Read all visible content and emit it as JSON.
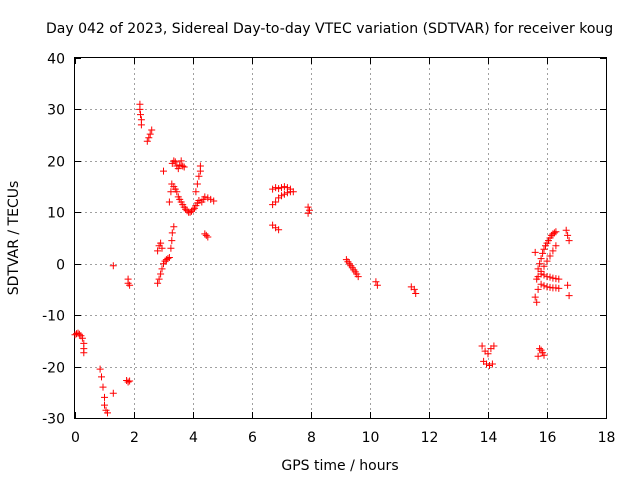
{
  "chart_data": {
    "type": "scatter",
    "title": "Day 042 of 2023, Sidereal Day-to-day VTEC variation (SDTVAR) for receiver koug",
    "xlabel": "GPS time / hours",
    "ylabel": "SDTVAR / TECUs",
    "xlim": [
      0,
      18
    ],
    "ylim": [
      -30,
      40
    ],
    "xticks": [
      0,
      2,
      4,
      6,
      8,
      10,
      12,
      14,
      16,
      18
    ],
    "yticks": [
      -30,
      -20,
      -10,
      0,
      10,
      20,
      30,
      40
    ],
    "grid": true,
    "marker": "+",
    "color": "#ff0000",
    "series": [
      {
        "name": "SDTVAR",
        "points": [
          [
            0.0,
            -13.8
          ],
          [
            0.05,
            -13.6
          ],
          [
            0.1,
            -13.5
          ],
          [
            0.15,
            -13.7
          ],
          [
            0.2,
            -14.0
          ],
          [
            0.25,
            -14.5
          ],
          [
            0.3,
            -15.5
          ],
          [
            0.3,
            -16.5
          ],
          [
            0.3,
            -17.3
          ],
          [
            0.85,
            -20.5
          ],
          [
            0.9,
            -22.0
          ],
          [
            0.95,
            -24.0
          ],
          [
            1.0,
            -26.0
          ],
          [
            1.0,
            -27.5
          ],
          [
            1.05,
            -28.5
          ],
          [
            1.1,
            -29.0
          ],
          [
            1.3,
            -0.4
          ],
          [
            1.3,
            -25.2
          ],
          [
            1.8,
            -3.0
          ],
          [
            1.8,
            -3.8
          ],
          [
            1.85,
            -4.2
          ],
          [
            1.75,
            -22.7
          ],
          [
            1.8,
            -23.0
          ],
          [
            1.85,
            -22.8
          ],
          [
            2.2,
            31.0
          ],
          [
            2.2,
            30.0
          ],
          [
            2.22,
            29.0
          ],
          [
            2.25,
            28.0
          ],
          [
            2.25,
            27.0
          ],
          [
            2.45,
            23.8
          ],
          [
            2.5,
            24.5
          ],
          [
            2.55,
            25.2
          ],
          [
            2.6,
            26.0
          ],
          [
            2.8,
            -3.8
          ],
          [
            2.85,
            -3.0
          ],
          [
            2.9,
            -2.0
          ],
          [
            2.95,
            -1.0
          ],
          [
            3.0,
            0.0
          ],
          [
            3.05,
            0.5
          ],
          [
            3.1,
            0.8
          ],
          [
            3.15,
            1.0
          ],
          [
            3.2,
            1.2
          ],
          [
            2.8,
            2.5
          ],
          [
            2.85,
            3.5
          ],
          [
            2.9,
            4.0
          ],
          [
            2.95,
            3.0
          ],
          [
            3.25,
            3.0
          ],
          [
            3.28,
            4.5
          ],
          [
            3.3,
            6.0
          ],
          [
            3.35,
            7.2
          ],
          [
            3.0,
            18.0
          ],
          [
            3.2,
            12.0
          ],
          [
            3.25,
            14.0
          ],
          [
            3.28,
            15.5
          ],
          [
            3.3,
            19.5
          ],
          [
            3.35,
            20.0
          ],
          [
            3.4,
            19.8
          ],
          [
            3.45,
            19.0
          ],
          [
            3.5,
            18.5
          ],
          [
            3.55,
            19.2
          ],
          [
            3.6,
            20.0
          ],
          [
            3.65,
            19.0
          ],
          [
            3.7,
            18.8
          ],
          [
            3.35,
            15.0
          ],
          [
            3.4,
            14.5
          ],
          [
            3.45,
            14.0
          ],
          [
            3.5,
            13.0
          ],
          [
            3.55,
            12.5
          ],
          [
            3.6,
            12.0
          ],
          [
            3.65,
            11.5
          ],
          [
            3.7,
            11.0
          ],
          [
            3.75,
            10.6
          ],
          [
            3.8,
            10.3
          ],
          [
            3.85,
            10.0
          ],
          [
            3.9,
            10.0
          ],
          [
            3.95,
            10.2
          ],
          [
            4.0,
            10.5
          ],
          [
            4.05,
            10.8
          ],
          [
            4.1,
            11.3
          ],
          [
            4.15,
            11.8
          ],
          [
            4.2,
            12.3
          ],
          [
            4.1,
            14.0
          ],
          [
            4.15,
            15.5
          ],
          [
            4.2,
            17.0
          ],
          [
            4.25,
            18.0
          ],
          [
            4.25,
            19.0
          ],
          [
            4.3,
            12.0
          ],
          [
            4.35,
            12.5
          ],
          [
            4.4,
            13.0
          ],
          [
            4.5,
            12.8
          ],
          [
            4.6,
            12.5
          ],
          [
            4.7,
            12.2
          ],
          [
            4.4,
            5.8
          ],
          [
            4.45,
            5.5
          ],
          [
            4.5,
            5.2
          ],
          [
            6.7,
            14.5
          ],
          [
            6.8,
            14.8
          ],
          [
            6.9,
            14.6
          ],
          [
            7.0,
            14.8
          ],
          [
            7.1,
            15.0
          ],
          [
            7.2,
            14.8
          ],
          [
            7.3,
            14.5
          ],
          [
            7.4,
            14.0
          ],
          [
            6.7,
            11.5
          ],
          [
            6.8,
            12.0
          ],
          [
            6.9,
            12.8
          ],
          [
            7.0,
            13.2
          ],
          [
            7.1,
            13.5
          ],
          [
            7.2,
            13.8
          ],
          [
            7.3,
            14.0
          ],
          [
            6.7,
            7.5
          ],
          [
            6.8,
            7.0
          ],
          [
            6.9,
            6.6
          ],
          [
            7.9,
            11.0
          ],
          [
            7.95,
            10.4
          ],
          [
            7.9,
            9.8
          ],
          [
            9.2,
            0.8
          ],
          [
            9.25,
            0.4
          ],
          [
            9.3,
            0.0
          ],
          [
            9.35,
            -0.4
          ],
          [
            9.4,
            -0.8
          ],
          [
            9.45,
            -1.2
          ],
          [
            9.5,
            -1.6
          ],
          [
            9.55,
            -2.0
          ],
          [
            9.6,
            -2.5
          ],
          [
            10.2,
            -3.5
          ],
          [
            10.25,
            -4.2
          ],
          [
            11.4,
            -4.5
          ],
          [
            11.5,
            -5.0
          ],
          [
            11.55,
            -5.8
          ],
          [
            13.8,
            -16.0
          ],
          [
            13.9,
            -17.0
          ],
          [
            14.0,
            -17.5
          ],
          [
            14.1,
            -16.5
          ],
          [
            14.2,
            -16.0
          ],
          [
            13.85,
            -19.0
          ],
          [
            13.95,
            -19.5
          ],
          [
            14.05,
            -19.8
          ],
          [
            14.15,
            -19.5
          ],
          [
            15.6,
            2.2
          ],
          [
            15.65,
            -3.0
          ],
          [
            15.7,
            -5.0
          ],
          [
            15.65,
            -7.5
          ],
          [
            15.6,
            -6.5
          ],
          [
            15.7,
            -1.0
          ],
          [
            15.75,
            0.0
          ],
          [
            15.8,
            1.0
          ],
          [
            15.85,
            2.0
          ],
          [
            15.9,
            2.8
          ],
          [
            15.95,
            3.5
          ],
          [
            16.0,
            4.0
          ],
          [
            16.05,
            4.5
          ],
          [
            16.1,
            5.0
          ],
          [
            16.15,
            5.5
          ],
          [
            16.2,
            5.8
          ],
          [
            16.25,
            6.0
          ],
          [
            16.3,
            6.2
          ],
          [
            15.7,
            -2.5
          ],
          [
            15.8,
            -1.5
          ],
          [
            15.9,
            -0.5
          ],
          [
            16.0,
            0.5
          ],
          [
            16.1,
            1.5
          ],
          [
            16.2,
            2.5
          ],
          [
            16.3,
            3.5
          ],
          [
            15.8,
            -2.0
          ],
          [
            15.9,
            -2.2
          ],
          [
            16.0,
            -2.5
          ],
          [
            16.1,
            -2.6
          ],
          [
            16.2,
            -2.8
          ],
          [
            16.3,
            -2.9
          ],
          [
            16.4,
            -3.0
          ],
          [
            15.8,
            -4.0
          ],
          [
            15.9,
            -4.3
          ],
          [
            16.0,
            -4.5
          ],
          [
            16.1,
            -4.6
          ],
          [
            16.2,
            -4.7
          ],
          [
            16.3,
            -4.7
          ],
          [
            16.4,
            -4.8
          ],
          [
            16.65,
            6.5
          ],
          [
            16.7,
            5.5
          ],
          [
            16.75,
            4.5
          ],
          [
            16.7,
            -4.2
          ],
          [
            16.75,
            -6.2
          ],
          [
            15.8,
            -16.8
          ],
          [
            15.85,
            -17.3
          ],
          [
            15.9,
            -17.8
          ],
          [
            15.75,
            -16.5
          ],
          [
            15.7,
            -18.0
          ]
        ]
      }
    ]
  }
}
